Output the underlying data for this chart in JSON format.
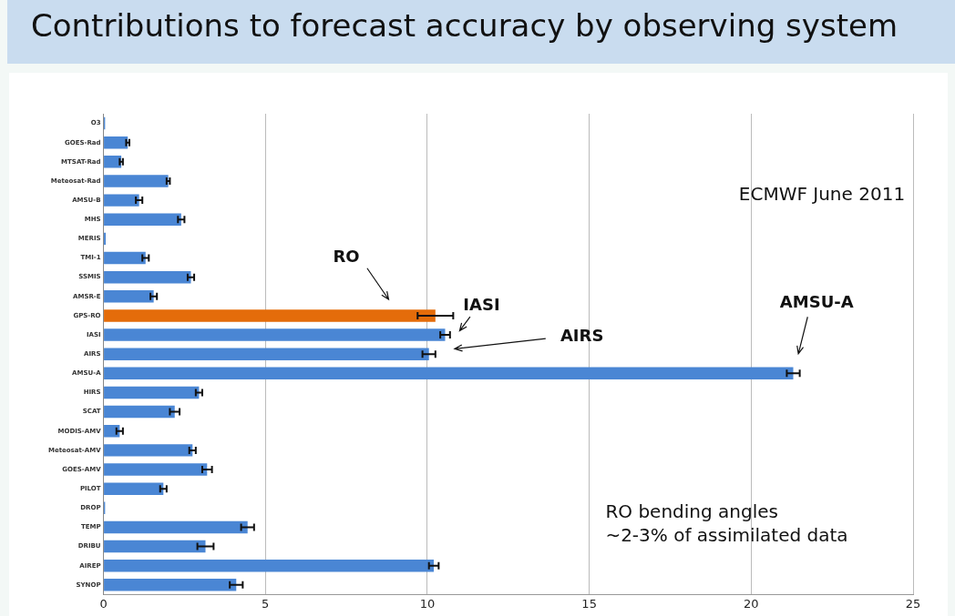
{
  "chart_data": {
    "type": "bar",
    "orientation": "horizontal",
    "title": "Contributions to forecast accuracy by observing system",
    "categories": [
      "O3",
      "GOES-Rad",
      "MTSAT-Rad",
      "Meteosat-Rad",
      "AMSU-B",
      "MHS",
      "MERIS",
      "TMI-1",
      "SSMIS",
      "AMSR-E",
      "GPS-RO",
      "IASI",
      "AIRS",
      "AMSU-A",
      "HIRS",
      "SCAT",
      "MODIS-AMV",
      "Meteosat-AMV",
      "GOES-AMV",
      "PILOT",
      "DROP",
      "TEMP",
      "DRIBU",
      "AIREP",
      "SYNOP"
    ],
    "values": [
      0.05,
      0.75,
      0.55,
      2.0,
      1.1,
      2.4,
      0.07,
      1.3,
      2.7,
      1.55,
      10.25,
      10.55,
      10.05,
      21.3,
      2.95,
      2.2,
      0.5,
      2.75,
      3.2,
      1.85,
      0.05,
      4.45,
      3.15,
      10.2,
      4.1
    ],
    "errors": [
      null,
      0.05,
      0.05,
      0.05,
      0.1,
      0.1,
      null,
      0.1,
      0.1,
      0.1,
      0.55,
      0.15,
      0.2,
      0.2,
      0.1,
      0.15,
      0.1,
      0.1,
      0.15,
      0.1,
      null,
      0.2,
      0.25,
      0.15,
      0.2
    ],
    "colors": [
      "#4a86d4",
      "#4a86d4",
      "#4a86d4",
      "#4a86d4",
      "#4a86d4",
      "#4a86d4",
      "#4a86d4",
      "#4a86d4",
      "#4a86d4",
      "#4a86d4",
      "#e46c0a",
      "#4a86d4",
      "#4a86d4",
      "#4a86d4",
      "#4a86d4",
      "#4a86d4",
      "#4a86d4",
      "#4a86d4",
      "#4a86d4",
      "#4a86d4",
      "#4a86d4",
      "#4a86d4",
      "#4a86d4",
      "#4a86d4",
      "#4a86d4"
    ],
    "xlim": [
      0,
      25
    ],
    "xticks": [
      0,
      5,
      10,
      15,
      20,
      25
    ],
    "grid": "x",
    "legend": false,
    "annotations": [
      "RO",
      {
        "text": "IASI",
        "x": 10.55,
        "y": "IASI"
      },
      "AIRS",
      "AMSU-A",
      "ECMWF June 2011",
      "RO bending angles\n~2-3% of assimilated data"
    ]
  }
}
